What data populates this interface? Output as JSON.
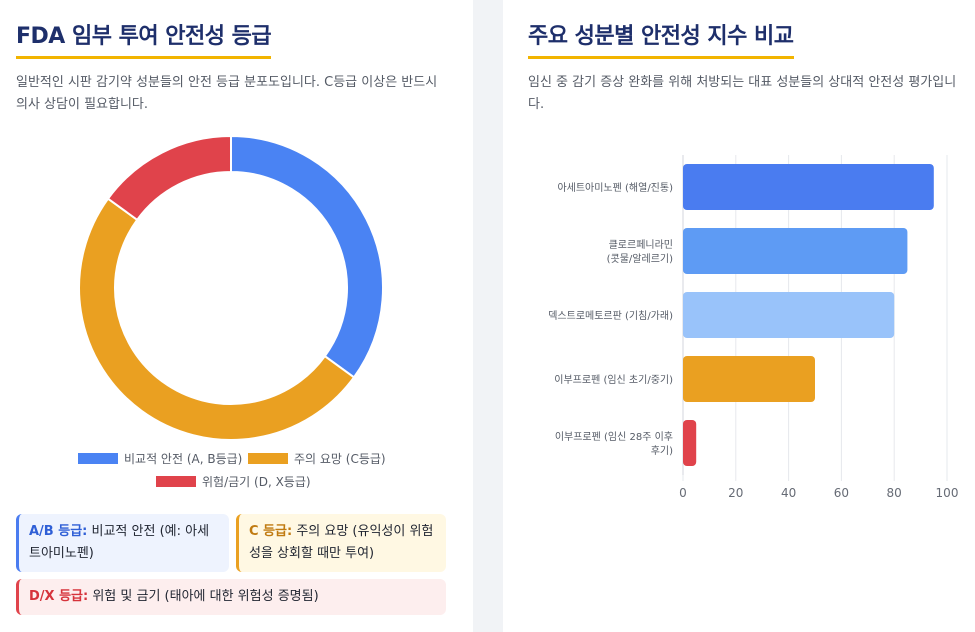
{
  "left": {
    "title": "FDA 임부 투여 안전성 등급",
    "description": "일반적인 시판 감기약 성분들의 안전 등급 분포도입니다. C등급 이상은 반드시 의사 상담이 필요합니다.",
    "legend": [
      {
        "label": "비교적 안전 (A, B등급)",
        "color": "#4a83f3"
      },
      {
        "label": "주의 요망 (C등급)",
        "color": "#eaa021"
      },
      {
        "label": "위험/금기 (D, X등급)",
        "color": "#e0434b"
      }
    ],
    "info_boxes": {
      "ab": {
        "head": "A/B 등급:",
        "text": " 비교적 안전 (예: 아세트아미노펜)"
      },
      "c": {
        "head": "C 등급:",
        "text": " 주의 요망 (유익성이 위험성을 상회할 때만 투여)"
      },
      "dx": {
        "head": "D/X 등급:",
        "text": " 위험 및 금기 (태아에 대한 위험성 증명됨)"
      }
    }
  },
  "right": {
    "title": "주요 성분별 안전성 지수 비교",
    "description": "임신 중 감기 증상 완화를 위해 처방되는 대표 성분들의 상대적 안전성 평가입니다."
  },
  "chart_data": [
    {
      "type": "pie",
      "subtype": "doughnut",
      "categories": [
        "비교적 안전 (A, B등급)",
        "주의 요망 (C등급)",
        "위험/금기 (D, X등급)"
      ],
      "values": [
        35,
        50,
        15
      ],
      "colors": [
        "#4a83f3",
        "#eaa021",
        "#e0434b"
      ],
      "legend_position": "bottom"
    },
    {
      "type": "bar",
      "orientation": "horizontal",
      "categories": [
        [
          "아세트아미노펜 (해열/진통)"
        ],
        [
          "클로르페니라민",
          "(콧물/알레르기)"
        ],
        [
          "덱스트로메토르판 (기침/가래)"
        ],
        [
          "이부프로펜 (임신 초기/중기)"
        ],
        [
          "이부프로펜 (임신 28주 이후",
          "후기)"
        ]
      ],
      "values": [
        95,
        85,
        80,
        50,
        5
      ],
      "colors": [
        "#4a7cf0",
        "#5e9bf4",
        "#99c3fa",
        "#eaa021",
        "#e0434b"
      ],
      "xlim": [
        0,
        100
      ],
      "xticks": [
        0,
        20,
        40,
        60,
        80,
        100
      ],
      "grid": true
    }
  ]
}
